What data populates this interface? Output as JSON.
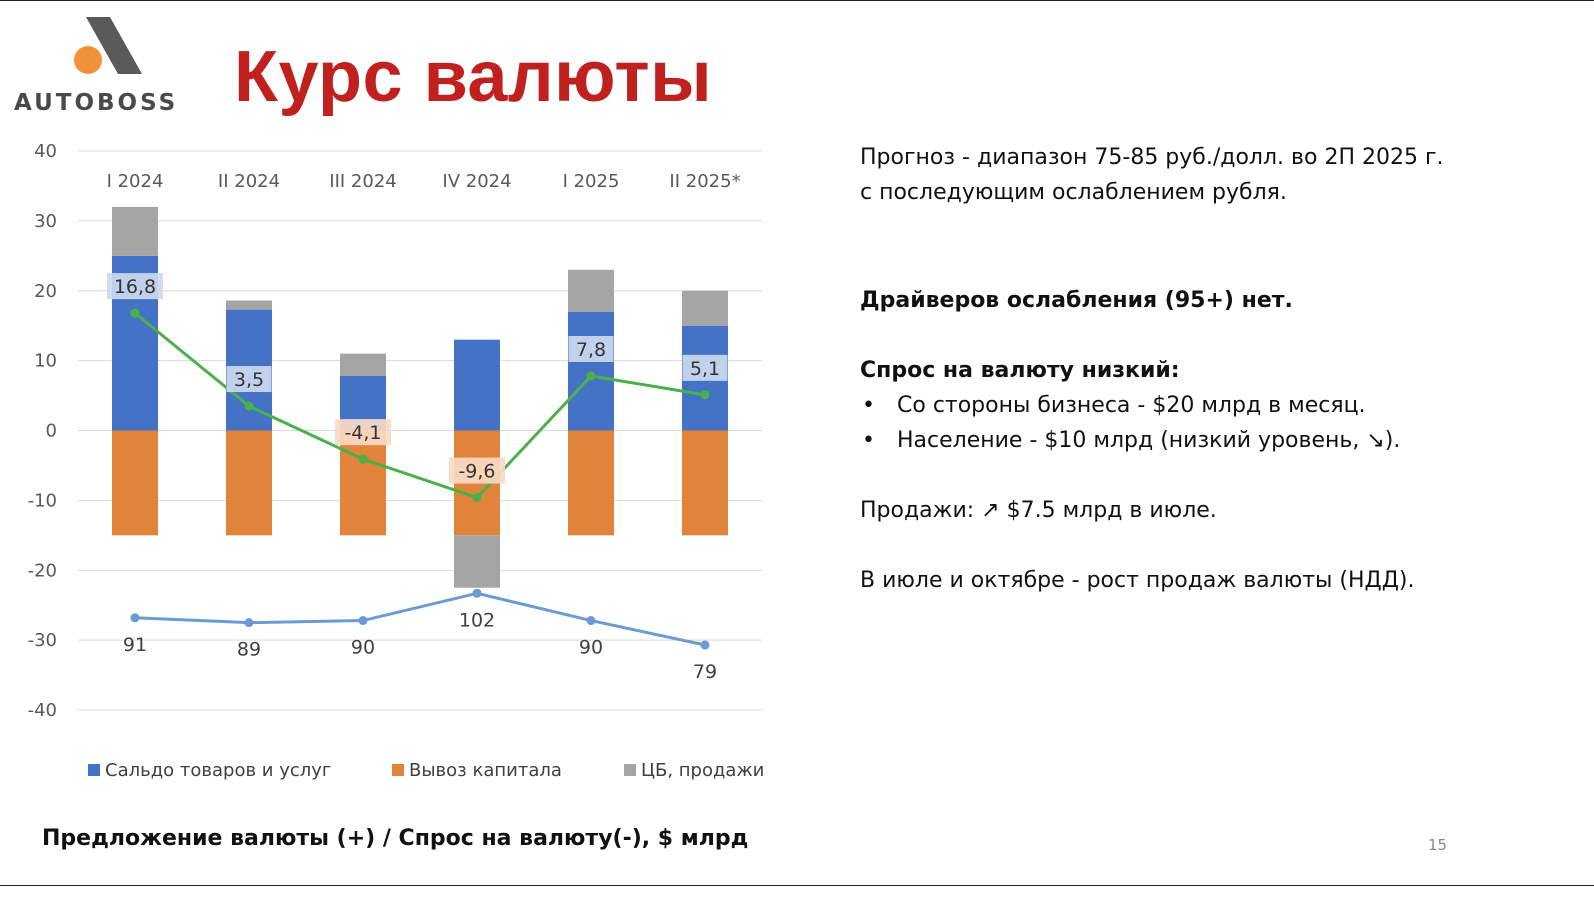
{
  "brand": {
    "logo_text": "AUTOBOSS"
  },
  "title": "Курс валюты",
  "page_number": "15",
  "colors": {
    "title": "#c0201e",
    "trade_balance": "#4472c4",
    "capital_outflow": "#e0843c",
    "cb_sales": "#a5a5a5",
    "net_line": "#4ab04a",
    "rate_line": "#6b9bd2"
  },
  "chart_caption": "Предложение валюты (+) / Спрос на валюту(-), $ млрд",
  "chart_data": {
    "type": "bar",
    "stacked": true,
    "categories": [
      "I 2024",
      "II 2024",
      "III 2024",
      "IV 2024",
      "I 2025",
      "II 2025*"
    ],
    "ylim": [
      -40,
      40
    ],
    "yticks": [
      40,
      30,
      20,
      10,
      0,
      -10,
      -20,
      -30,
      -40
    ],
    "grid": true,
    "legend_position": "bottom",
    "series": [
      {
        "name": "Сальдо товаров и услуг",
        "values": [
          25,
          17.3,
          7.8,
          13,
          17,
          15
        ]
      },
      {
        "name": "Вывоз капитала",
        "values": [
          -15,
          -15,
          -15,
          -15,
          -15,
          -15
        ]
      },
      {
        "name": "ЦБ, продажи",
        "values": [
          7,
          1.3,
          3.2,
          -7.5,
          6,
          5
        ]
      }
    ],
    "net_line": {
      "values": [
        16.8,
        3.5,
        -4.1,
        -9.6,
        7.8,
        5.1
      ],
      "labels": [
        "16,8",
        "3,5",
        "-4,1",
        "-9,6",
        "7,8",
        "5,1"
      ]
    },
    "rate_line": {
      "plot_positions": [
        -26.8,
        -27.5,
        -27.2,
        -23.3,
        -27.2,
        -30.7
      ],
      "labels": [
        "91",
        "89",
        "90",
        "102",
        "90",
        "79"
      ]
    }
  },
  "notes": {
    "forecast_line1": "Прогноз - диапазон 75-85 руб./долл. во 2П 2025 г.",
    "forecast_line2": "с последующим ослаблением рубля.",
    "drivers": "Драйверов ослабления (95+) нет.",
    "demand_heading": "Спрос на валюту низкий:",
    "bullet_symbol": "•",
    "bullets": [
      "Со стороны бизнеса - $20 млрд в месяц.",
      "Население - $10 млрд (низкий уровень, ↘)."
    ],
    "sales": "Продажи: ↗ $7.5 млрд в июле.",
    "oct_july": "В июле и октябре - рост продаж валюты (НДД)."
  }
}
